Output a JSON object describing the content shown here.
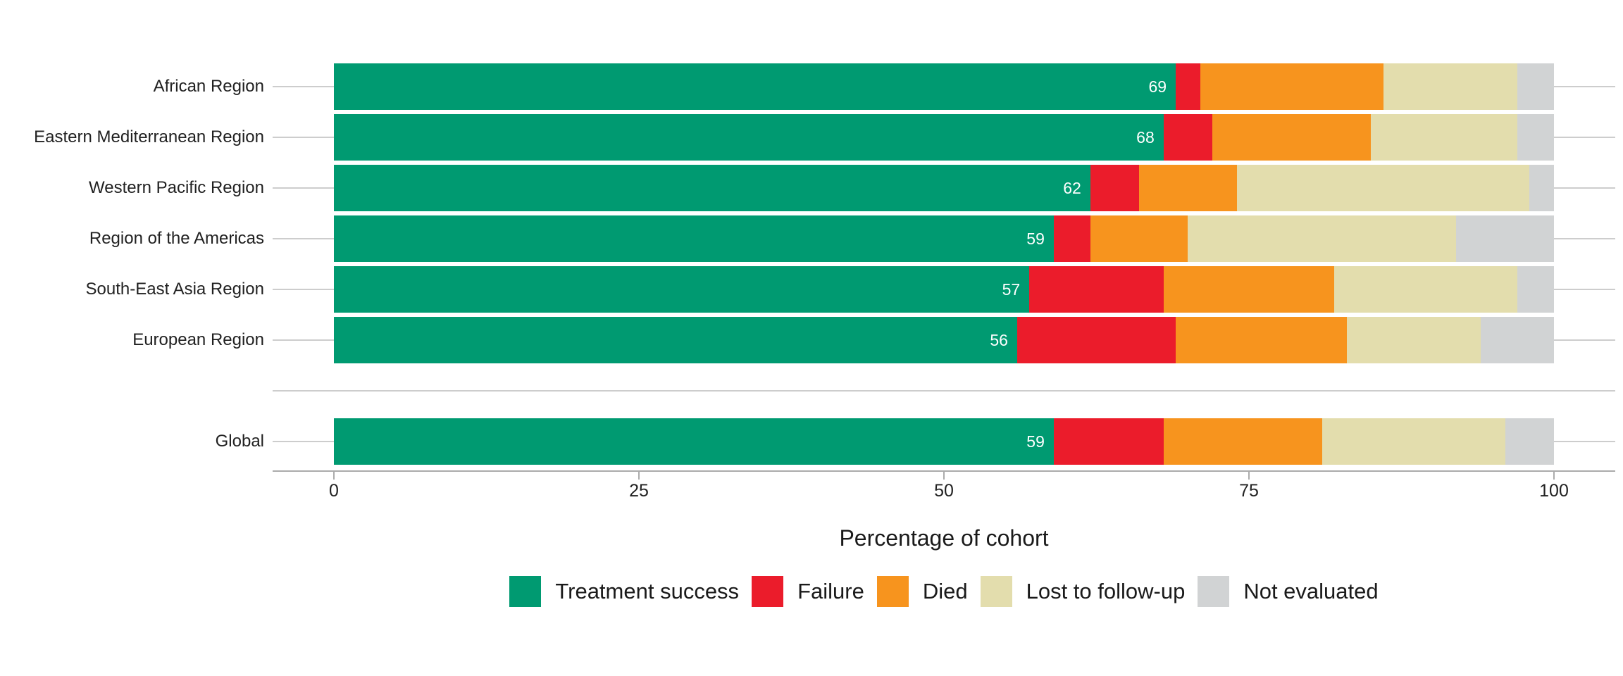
{
  "chart_data": {
    "type": "bar",
    "orientation": "horizontal",
    "stacked": true,
    "unit": "percent",
    "xlabel": "Percentage of cohort",
    "xlim": [
      0,
      100
    ],
    "x_ticks": [
      0,
      25,
      50,
      75,
      100
    ],
    "grid": "category gridlines behind bars, light gray",
    "legend_position": "bottom",
    "gap_after_category": "European Region",
    "categories": [
      "African Region",
      "Eastern Mediterranean Region",
      "Western Pacific Region",
      "Region of the Americas",
      "South-East Asia Region",
      "European Region",
      "Global"
    ],
    "series": [
      {
        "name": "Treatment success",
        "color": "#009A71",
        "values": [
          69,
          68,
          62,
          59,
          57,
          56,
          59
        ]
      },
      {
        "name": "Failure",
        "color": "#EB1C2B",
        "values": [
          2,
          4,
          4,
          3,
          11,
          13,
          9
        ]
      },
      {
        "name": "Died",
        "color": "#F7941E",
        "values": [
          15,
          13,
          8,
          8,
          14,
          14,
          13
        ]
      },
      {
        "name": "Lost to follow-up",
        "color": "#E3DDAD",
        "values": [
          11,
          12,
          24,
          22,
          15,
          11,
          15
        ]
      },
      {
        "name": "Not evaluated",
        "color": "#D1D3D4",
        "values": [
          3,
          3,
          2,
          8,
          3,
          6,
          4
        ]
      }
    ],
    "bar_value_labels": {
      "on_series": "Treatment success",
      "values": [
        69,
        68,
        62,
        59,
        57,
        56,
        59
      ],
      "color": "#FFFFFF"
    }
  }
}
